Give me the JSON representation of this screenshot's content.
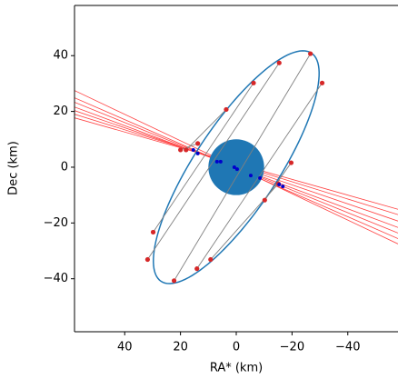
{
  "chart_data": {
    "type": "occultation",
    "xlabel": "RA* (km)",
    "ylabel": "Dec (km)",
    "xlim": [
      58,
      -58
    ],
    "ylim": [
      -59,
      58
    ],
    "xticks": [
      40,
      20,
      0,
      {
        "value": -20,
        "label": "−20"
      },
      {
        "value": -40,
        "label": "−40"
      }
    ],
    "yticks": [
      {
        "value": -40,
        "label": "−40"
      },
      {
        "value": -20,
        "label": "−20"
      },
      0,
      20,
      40
    ],
    "ellipse": {
      "x": 0,
      "y": 0,
      "semi_major": 49,
      "semi_minor": 15,
      "major_dx": -0.55,
      "major_dy": 0.835,
      "color": "#1f77b4"
    },
    "body": {
      "x": 0,
      "y": 0,
      "radius": 10,
      "color": "#1f77b4"
    },
    "chord_color": "#808080",
    "point_color": "#d62728",
    "chords": [
      {
        "x": [
          -26.6,
          22.3
        ],
        "y": [
          40.7,
          -40.7
        ]
      },
      {
        "x": [
          -15.4,
          31.8
        ],
        "y": [
          37.4,
          -33.1
        ]
      },
      {
        "x": [
          -30.8,
          14.1
        ],
        "y": [
          30.2,
          -36.4
        ]
      },
      {
        "x": [
          -6.2,
          29.8
        ],
        "y": [
          30.2,
          -23.3
        ]
      },
      {
        "x": [
          3.6,
          18.0
        ],
        "y": [
          20.7,
          6.2
        ]
      },
      {
        "x": [
          -19.7,
          -10.2
        ],
        "y": [
          1.6,
          -11.8
        ]
      },
      {
        "x": [
          -15.1,
          9.2
        ],
        "y": [
          -5.9,
          -33.1
        ]
      },
      {
        "x": [
          13.8,
          20.0
        ],
        "y": [
          8.5,
          6.2
        ]
      }
    ],
    "ray_color": "#ff4040",
    "rays": [
      {
        "x": [
          58,
          -58
        ],
        "y": [
          27.5,
          -27.5
        ]
      },
      {
        "x": [
          58,
          -58
        ],
        "y": [
          24.9,
          -25.6
        ]
      },
      {
        "x": [
          58,
          -58
        ],
        "y": [
          23.3,
          -23.6
        ]
      },
      {
        "x": [
          58,
          -58
        ],
        "y": [
          21.6,
          -21.6
        ]
      },
      {
        "x": [
          58,
          -58
        ],
        "y": [
          20.3,
          -19.3
        ]
      },
      {
        "x": [
          58,
          -58
        ],
        "y": [
          19.0,
          -17.0
        ]
      },
      {
        "x": [
          58,
          -58
        ],
        "y": [
          17.7,
          -15.1
        ]
      }
    ],
    "center_color": "#0000cc",
    "centers": {
      "x": [
        6.9,
        5.6,
        0.7,
        -0.3,
        -5.2,
        -8.5,
        -15.4,
        -16.7,
        15.4,
        13.8
      ],
      "y": [
        2.0,
        2.0,
        0,
        -0.7,
        -3.0,
        -3.9,
        -6.2,
        -6.9,
        6.2,
        4.9
      ]
    }
  }
}
